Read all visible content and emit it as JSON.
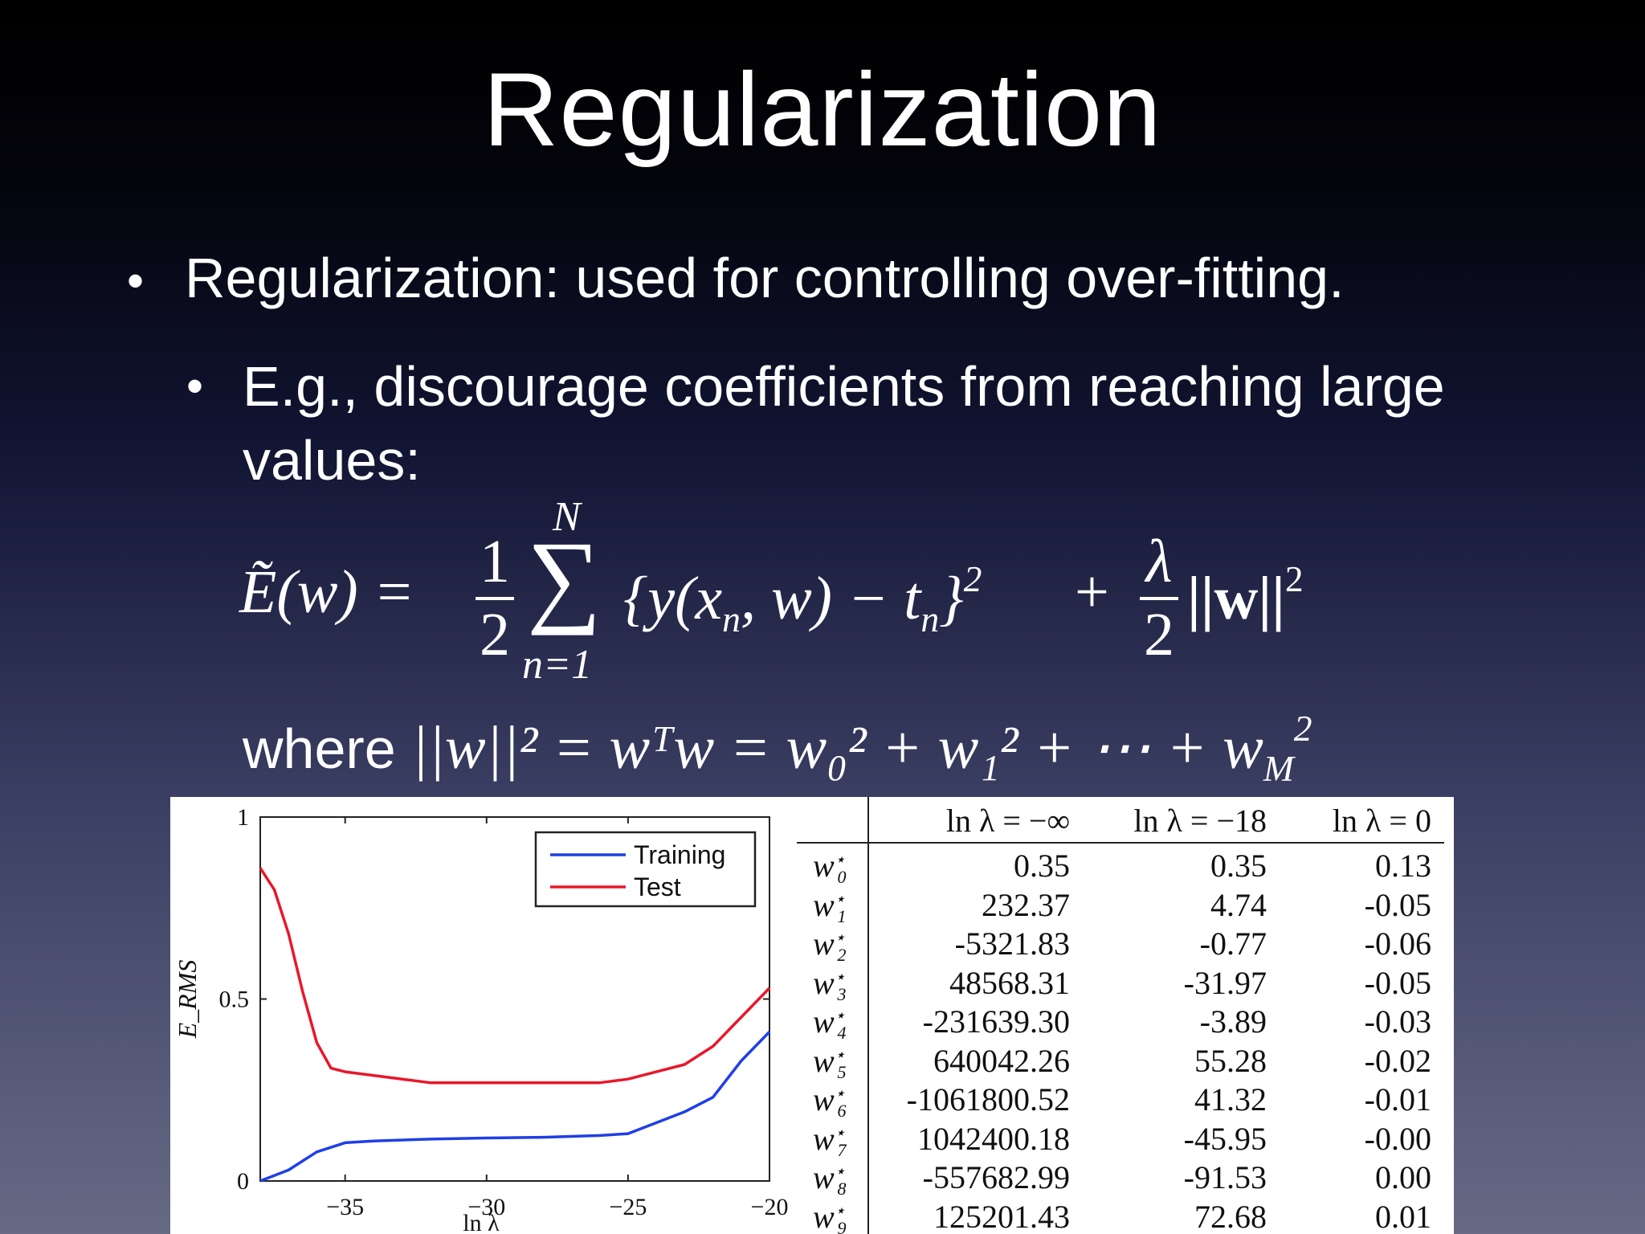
{
  "title": "Regularization",
  "bullets": {
    "level1": "Regularization: used for controlling over-fitting.",
    "level2": "E.g., discourage coefficients from reaching large values:",
    "dot": "•"
  },
  "equation": {
    "lhs": "Ẽ(w) =",
    "half_num": "1",
    "half_den": "2",
    "sum_top": "N",
    "sum_symbol": "∑",
    "sum_bottom": "n=1",
    "body": "{y(x",
    "body_n": "n",
    "body_mid": ", w) − t",
    "body_tn": "n",
    "body_close": "}",
    "body_sq": "2",
    "plus": "+",
    "lam_num": "λ",
    "lam_den": "2",
    "norm": "||w||",
    "norm_sq": "2"
  },
  "where_line": {
    "word": "where",
    "eq": "||w||² = wᵀw = w₀² + w₁² + ⋯ + w",
    "last_sub": "M",
    "last_sup": "2"
  },
  "chart_data": {
    "type": "line",
    "xlabel": "ln λ",
    "ylabel": "E_RMS",
    "xlim": [
      -38,
      -20
    ],
    "ylim": [
      0,
      1
    ],
    "xticks": [
      -35,
      -30,
      -25,
      -20
    ],
    "yticks": [
      0,
      0.5,
      1
    ],
    "xtick_labels": [
      "−35",
      "−30",
      "−25",
      "−20"
    ],
    "ytick_labels": [
      "0",
      "0.5",
      "1"
    ],
    "legend_placement": "top-right",
    "series": [
      {
        "name": "Training",
        "color": "#1f3fe6",
        "x": [
          -38,
          -37,
          -36,
          -35,
          -34,
          -32,
          -30,
          -28,
          -26,
          -25,
          -24,
          -23,
          -22,
          -21,
          -20
        ],
        "y": [
          0.0,
          0.03,
          0.08,
          0.105,
          0.11,
          0.115,
          0.118,
          0.12,
          0.125,
          0.13,
          0.16,
          0.19,
          0.23,
          0.33,
          0.41
        ]
      },
      {
        "name": "Test",
        "color": "#e8182a",
        "x": [
          -38,
          -37.5,
          -37,
          -36.5,
          -36,
          -35.5,
          -35,
          -34,
          -32,
          -30,
          -28,
          -26,
          -25,
          -24,
          -23,
          -22,
          -21,
          -20
        ],
        "y": [
          0.86,
          0.8,
          0.68,
          0.52,
          0.38,
          0.31,
          0.3,
          0.29,
          0.27,
          0.27,
          0.27,
          0.27,
          0.28,
          0.3,
          0.32,
          0.37,
          0.45,
          0.53
        ]
      }
    ]
  },
  "table": {
    "headers": [
      "",
      "ln λ = −∞",
      "ln λ = −18",
      "ln λ = 0"
    ],
    "rows": [
      {
        "w": "w",
        "i": "0",
        "a": "0.35",
        "b": "0.35",
        "c": "0.13"
      },
      {
        "w": "w",
        "i": "1",
        "a": "232.37",
        "b": "4.74",
        "c": "-0.05"
      },
      {
        "w": "w",
        "i": "2",
        "a": "-5321.83",
        "b": "-0.77",
        "c": "-0.06"
      },
      {
        "w": "w",
        "i": "3",
        "a": "48568.31",
        "b": "-31.97",
        "c": "-0.05"
      },
      {
        "w": "w",
        "i": "4",
        "a": "-231639.30",
        "b": "-3.89",
        "c": "-0.03"
      },
      {
        "w": "w",
        "i": "5",
        "a": "640042.26",
        "b": "55.28",
        "c": "-0.02"
      },
      {
        "w": "w",
        "i": "6",
        "a": "-1061800.52",
        "b": "41.32",
        "c": "-0.01"
      },
      {
        "w": "w",
        "i": "7",
        "a": "1042400.18",
        "b": "-45.95",
        "c": "-0.00"
      },
      {
        "w": "w",
        "i": "8",
        "a": "-557682.99",
        "b": "-91.53",
        "c": "0.00"
      },
      {
        "w": "w",
        "i": "9",
        "a": "125201.43",
        "b": "72.68",
        "c": "0.01"
      }
    ]
  }
}
